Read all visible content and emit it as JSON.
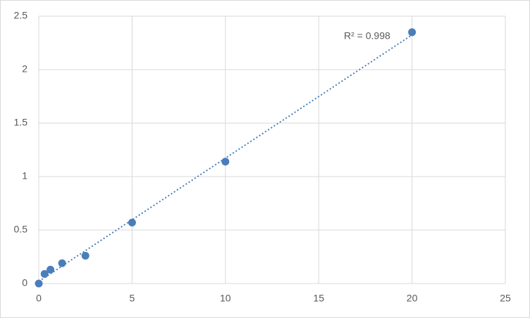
{
  "chart_data": {
    "type": "scatter",
    "x": [
      0,
      0.312,
      0.625,
      1.25,
      2.5,
      5,
      10,
      20
    ],
    "values": [
      0,
      0.09,
      0.13,
      0.19,
      0.26,
      0.57,
      1.14,
      2.35
    ],
    "color": "#4a7ebb",
    "xlim": [
      0,
      25
    ],
    "xticks": [
      0,
      5,
      10,
      15,
      20,
      25
    ],
    "ylim": [
      0,
      2.5
    ],
    "yticks": [
      0,
      0.5,
      1,
      1.5,
      2,
      2.5
    ],
    "grid": true,
    "trendline": "linear",
    "annotation": "R² = 0.998"
  }
}
